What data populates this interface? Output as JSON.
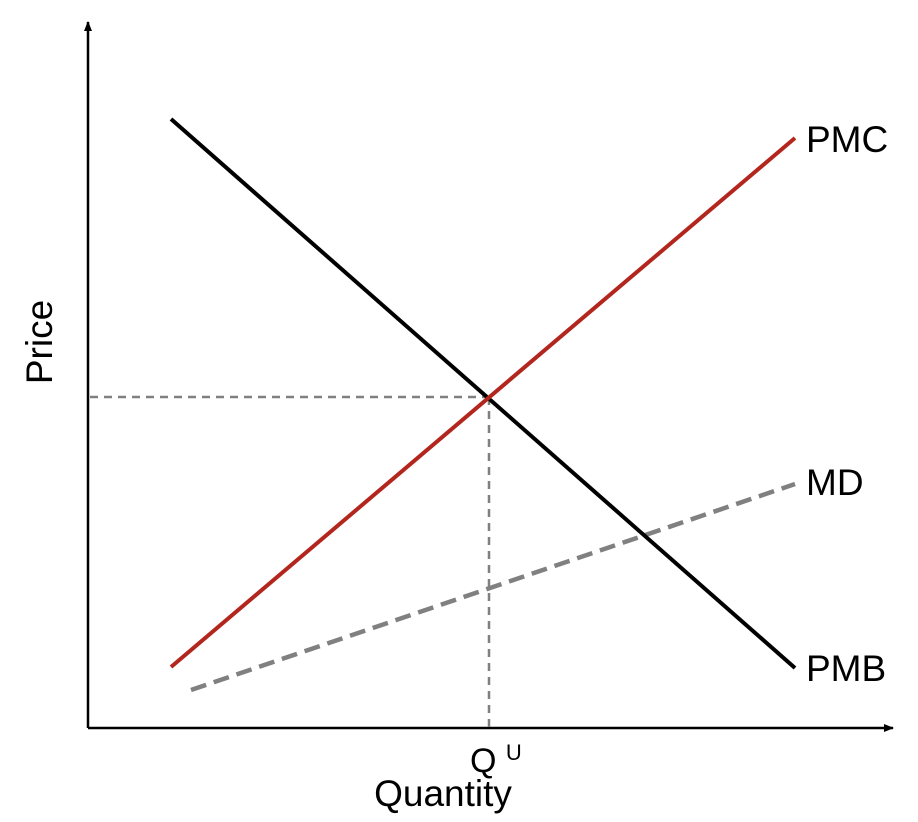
{
  "axes": {
    "x_label": "Quantity",
    "y_label": "Price"
  },
  "tick": {
    "base": "Q",
    "superscript": "U"
  },
  "curves": {
    "pmc": {
      "label": "PMC",
      "color": "#b3261e"
    },
    "pmb": {
      "label": "PMB",
      "color": "#000000"
    },
    "md": {
      "label": "MD",
      "color": "#808080"
    }
  },
  "guides": {
    "color": "#808080"
  }
}
